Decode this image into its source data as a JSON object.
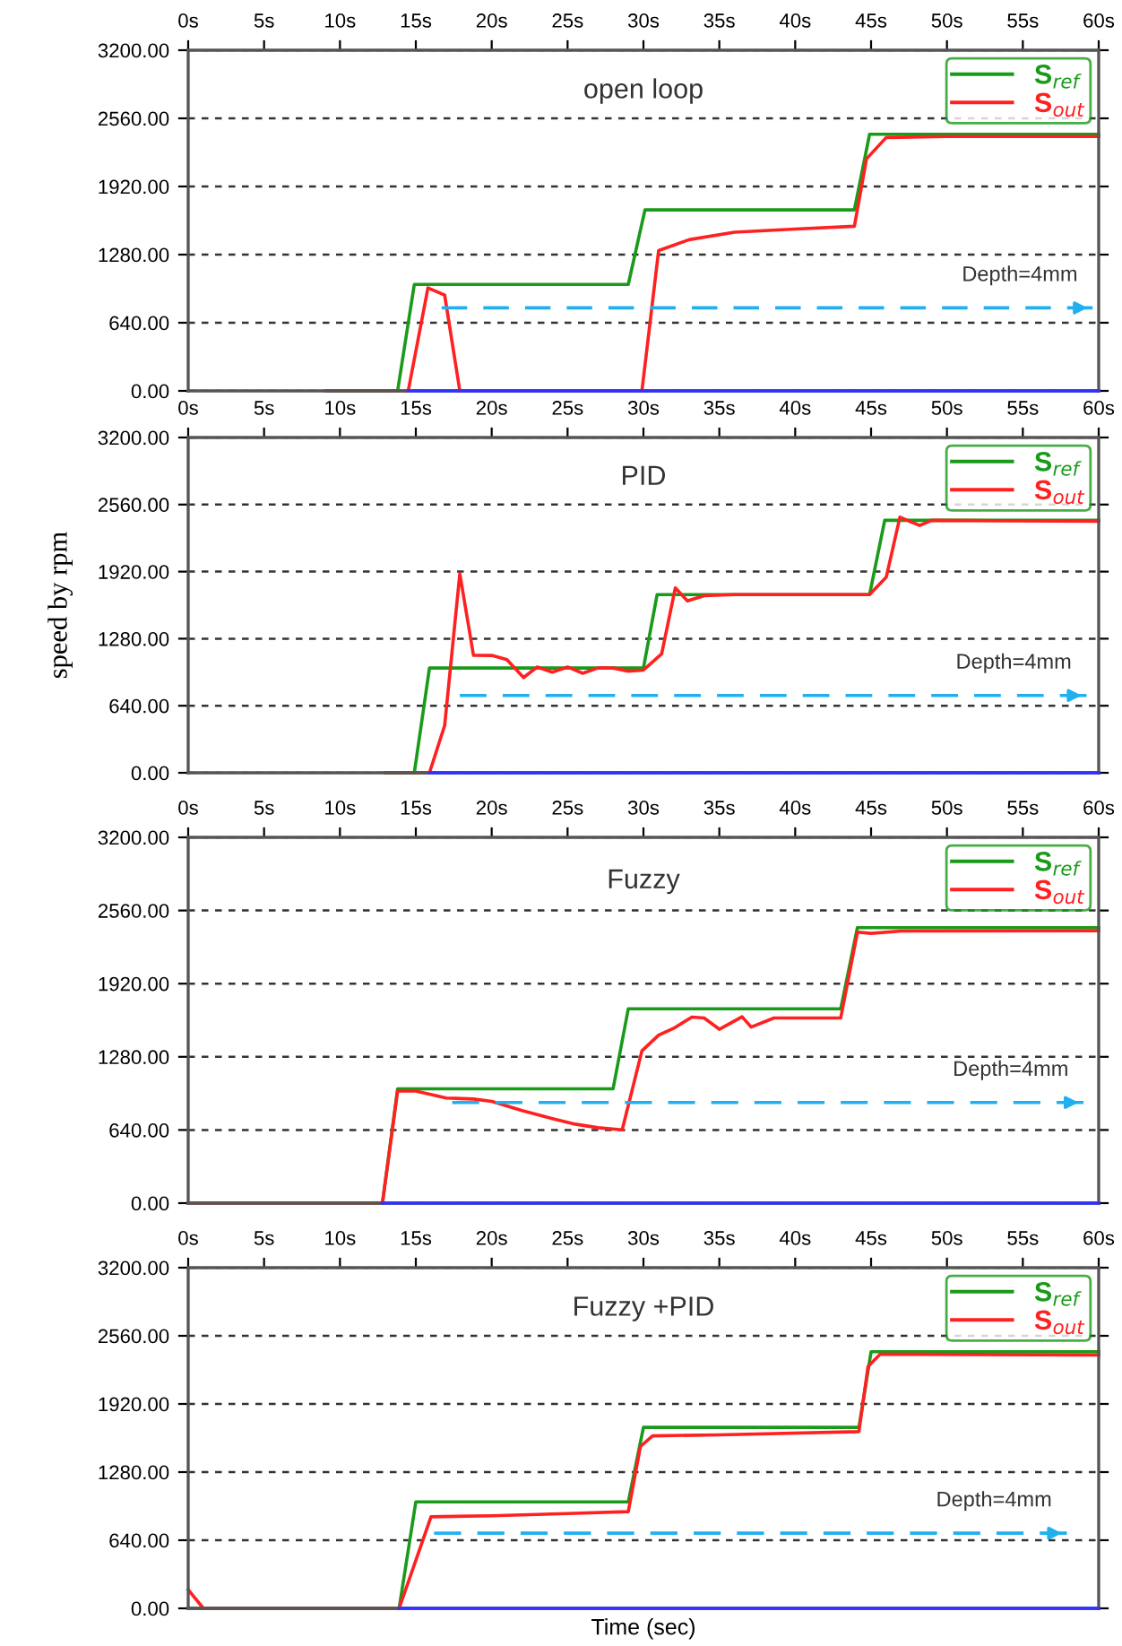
{
  "chart_data": [
    {
      "type": "line",
      "title": "open loop",
      "xlim": [
        0,
        60
      ],
      "ylim": [
        0,
        3200
      ],
      "xticks": [
        {
          "value": 0,
          "label": "0s"
        },
        {
          "value": 5,
          "label": "5s"
        },
        {
          "value": 10,
          "label": "10s"
        },
        {
          "value": 15,
          "label": "15s"
        },
        {
          "value": 20,
          "label": "20s"
        },
        {
          "value": 25,
          "label": "25s"
        },
        {
          "value": 30,
          "label": "30s"
        },
        {
          "value": 35,
          "label": "35s"
        },
        {
          "value": 40,
          "label": "40s"
        },
        {
          "value": 45,
          "label": "45s"
        },
        {
          "value": 50,
          "label": "50s"
        },
        {
          "value": 55,
          "label": "55s"
        },
        {
          "value": 60,
          "label": "60s"
        }
      ],
      "yticks": [
        {
          "value": 0,
          "label": "0.00"
        },
        {
          "value": 640,
          "label": "640.00"
        },
        {
          "value": 1280,
          "label": "1280.00"
        },
        {
          "value": 1920,
          "label": "1920.00"
        },
        {
          "value": 2560,
          "label": "2560.00"
        },
        {
          "value": 3200,
          "label": "3200.00"
        }
      ],
      "grid": "y",
      "legend": "top right",
      "annotations": [
        "Depth=4mm"
      ],
      "series": [
        {
          "name": "S$_{ref}$",
          "color": "#1a9a1a",
          "x": [
            9.1,
            13.8,
            14.9,
            29,
            30.1,
            43.9,
            44.9,
            60
          ],
          "values": [
            0,
            0,
            1000,
            1000,
            1700,
            1700,
            2410,
            2410
          ]
        },
        {
          "name": "S$_{out}$",
          "color": "#ff2020",
          "x": [
            9.1,
            14.5,
            15.8,
            16.9,
            17.9,
            29.9,
            31,
            33,
            36,
            40,
            43.9,
            44.7,
            46,
            50,
            60
          ],
          "values": [
            0,
            0,
            968,
            900,
            0,
            0,
            1318,
            1420,
            1490,
            1520,
            1546,
            2180,
            2380,
            2390,
            2390
          ]
        },
        {
          "color": "#3030ff",
          "x": [
            14.5,
            60
          ],
          "values": [
            0,
            0
          ]
        },
        {
          "color": "#20b0f0",
          "line_style": "dashed",
          "x": [
            16.7,
            59.6
          ],
          "values": [
            780,
            780
          ]
        }
      ]
    },
    {
      "type": "line",
      "title": "PID",
      "ylabel": "speed by rpm",
      "xlim": [
        0,
        60
      ],
      "ylim": [
        0,
        3200
      ],
      "xticks": [
        {
          "value": 0,
          "label": "0s"
        },
        {
          "value": 5,
          "label": "5s"
        },
        {
          "value": 10,
          "label": "10s"
        },
        {
          "value": 15,
          "label": "15s"
        },
        {
          "value": 20,
          "label": "20s"
        },
        {
          "value": 25,
          "label": "25s"
        },
        {
          "value": 30,
          "label": "30s"
        },
        {
          "value": 35,
          "label": "35s"
        },
        {
          "value": 40,
          "label": "40s"
        },
        {
          "value": 45,
          "label": "45s"
        },
        {
          "value": 50,
          "label": "50s"
        },
        {
          "value": 55,
          "label": "55s"
        },
        {
          "value": 60,
          "label": "60s"
        }
      ],
      "yticks": [
        {
          "value": 0,
          "label": "0.00"
        },
        {
          "value": 640,
          "label": "640.00"
        },
        {
          "value": 1280,
          "label": "1280.00"
        },
        {
          "value": 1920,
          "label": "1920.00"
        },
        {
          "value": 2560,
          "label": "2560.00"
        },
        {
          "value": 3200,
          "label": "3200.00"
        }
      ],
      "grid": "y",
      "legend": "top right",
      "annotations": [
        "Depth=4mm"
      ],
      "series": [
        {
          "name": "S$_{ref}$",
          "color": "#1a9a1a",
          "x": [
            13,
            14.9,
            15.9,
            30,
            30.9,
            44.9,
            45.9,
            60
          ],
          "values": [
            0,
            0,
            1000,
            1000,
            1700,
            1700,
            2410,
            2410
          ]
        },
        {
          "name": "S$_{out}$",
          "color": "#ff2020",
          "x": [
            13,
            15.9,
            16.9,
            17.9,
            18.8,
            20,
            21,
            22.1,
            23,
            24,
            25,
            26,
            27,
            28,
            29,
            30,
            31.2,
            32.1,
            32.9,
            34,
            36,
            40,
            44.9,
            46,
            46.9,
            48.2,
            49,
            60
          ],
          "values": [
            0,
            0,
            451,
            1900,
            1121,
            1120,
            1080,
            909,
            1010,
            960,
            1010,
            950,
            1000,
            1000,
            970,
            980,
            1135,
            1764,
            1640,
            1690,
            1700,
            1700,
            1700,
            1867,
            2440,
            2360,
            2410,
            2400
          ]
        },
        {
          "color": "#3030ff",
          "x": [
            15.9,
            60
          ],
          "values": [
            0,
            0
          ]
        },
        {
          "color": "#20b0f0",
          "line_style": "dashed",
          "x": [
            17.9,
            59.2
          ],
          "values": [
            738,
            738
          ]
        }
      ]
    },
    {
      "type": "line",
      "title": "Fuzzy",
      "xlim": [
        0,
        60
      ],
      "ylim": [
        0,
        3200
      ],
      "xticks": [
        {
          "value": 0,
          "label": "0s"
        },
        {
          "value": 5,
          "label": "5s"
        },
        {
          "value": 10,
          "label": "10s"
        },
        {
          "value": 15,
          "label": "15s"
        },
        {
          "value": 20,
          "label": "20s"
        },
        {
          "value": 25,
          "label": "25s"
        },
        {
          "value": 30,
          "label": "30s"
        },
        {
          "value": 35,
          "label": "35s"
        },
        {
          "value": 40,
          "label": "40s"
        },
        {
          "value": 45,
          "label": "45s"
        },
        {
          "value": 50,
          "label": "50s"
        },
        {
          "value": 55,
          "label": "55s"
        },
        {
          "value": 60,
          "label": "60s"
        }
      ],
      "yticks": [
        {
          "value": 0,
          "label": "0.00"
        },
        {
          "value": 640,
          "label": "640.00"
        },
        {
          "value": 1280,
          "label": "1280.00"
        },
        {
          "value": 1920,
          "label": "1920.00"
        },
        {
          "value": 2560,
          "label": "2560.00"
        },
        {
          "value": 3200,
          "label": "3200.00"
        }
      ],
      "grid": "y",
      "legend": "top right",
      "annotations": [
        "Depth=4mm"
      ],
      "series": [
        {
          "name": "S$_{ref}$",
          "color": "#1a9a1a",
          "x": [
            0,
            12.8,
            13.8,
            28,
            29,
            43,
            44.1,
            60
          ],
          "values": [
            0,
            0,
            1000,
            1000,
            1700,
            1700,
            2410,
            2410
          ]
        },
        {
          "name": "S$_{out}$",
          "color": "#ff2020",
          "x": [
            0,
            12.8,
            13.8,
            15,
            17,
            18.8,
            20,
            22,
            24,
            25.5,
            27,
            28.6,
            29.9,
            31,
            32,
            33.2,
            34,
            35,
            36.5,
            37.1,
            38.6,
            43,
            44.1,
            45,
            47,
            60
          ],
          "values": [
            0,
            0,
            980,
            980,
            920,
            911,
            890,
            810,
            740,
            691,
            660,
            641,
            1332,
            1470,
            1530,
            1628,
            1620,
            1521,
            1630,
            1540,
            1620,
            1620,
            2370,
            2360,
            2380,
            2383
          ]
        },
        {
          "color": "#3030ff",
          "x": [
            12.8,
            60
          ],
          "values": [
            0,
            0
          ]
        },
        {
          "color": "#20b0f0",
          "line_style": "dashed",
          "x": [
            17.4,
            59
          ],
          "values": [
            880,
            880
          ]
        }
      ]
    },
    {
      "type": "line",
      "title": "Fuzzy +PID",
      "xlabel": "Time (sec)",
      "xlim": [
        0,
        60
      ],
      "ylim": [
        0,
        3200
      ],
      "xticks": [
        {
          "value": 0,
          "label": "0s"
        },
        {
          "value": 5,
          "label": "5s"
        },
        {
          "value": 10,
          "label": "10s"
        },
        {
          "value": 15,
          "label": "15s"
        },
        {
          "value": 20,
          "label": "20s"
        },
        {
          "value": 25,
          "label": "25s"
        },
        {
          "value": 30,
          "label": "30s"
        },
        {
          "value": 35,
          "label": "35s"
        },
        {
          "value": 40,
          "label": "40s"
        },
        {
          "value": 45,
          "label": "45s"
        },
        {
          "value": 50,
          "label": "50s"
        },
        {
          "value": 55,
          "label": "55s"
        },
        {
          "value": 60,
          "label": "60s"
        }
      ],
      "yticks": [
        {
          "value": 0,
          "label": "0.00"
        },
        {
          "value": 640,
          "label": "640.00"
        },
        {
          "value": 1280,
          "label": "1280.00"
        },
        {
          "value": 1920,
          "label": "1920.00"
        },
        {
          "value": 2560,
          "label": "2560.00"
        },
        {
          "value": 3200,
          "label": "3200.00"
        }
      ],
      "grid": "y",
      "legend": "top right",
      "annotations": [
        "Depth=4mm"
      ],
      "series": [
        {
          "name": "S$_{ref}$",
          "color": "#1a9a1a",
          "x": [
            0,
            13.9,
            15,
            29,
            30,
            44.2,
            45,
            60
          ],
          "values": [
            0,
            0,
            1000,
            1000,
            1700,
            1700,
            2410,
            2410
          ]
        },
        {
          "name": "S$_{out}$",
          "color": "#ff2020",
          "x": [
            0,
            1,
            13.9,
            16,
            20,
            25,
            29,
            29.8,
            30.6,
            35,
            44.2,
            44.8,
            45.6,
            60
          ],
          "values": [
            175,
            0,
            0,
            860,
            870,
            890,
            908,
            1520,
            1620,
            1630,
            1660,
            2272,
            2387,
            2380
          ]
        },
        {
          "color": "#3030ff",
          "x": [
            13.9,
            60
          ],
          "values": [
            0,
            0
          ]
        },
        {
          "color": "#20b0f0",
          "line_style": "dashed",
          "x": [
            16.2,
            57.9
          ],
          "values": [
            706,
            706
          ]
        }
      ]
    }
  ]
}
